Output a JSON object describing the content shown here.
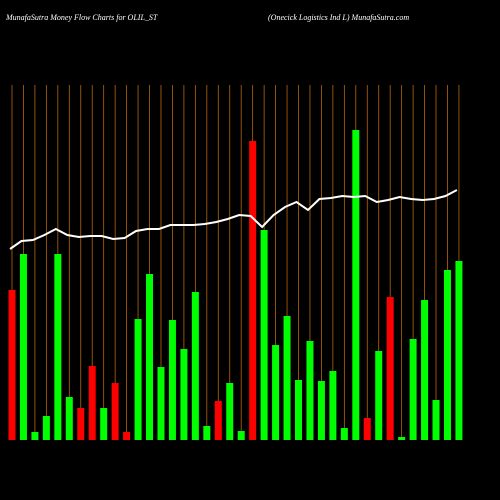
{
  "chart_data": {
    "type": "bar",
    "title": "MunafaSutra  Money Flow  Charts for OLIL_ST",
    "subtitle": "(Onecick Logistics Ind L) MunafaSutra.com",
    "ylim": [
      0,
      355
    ],
    "grid": true,
    "grid_color": "#b8660b",
    "series": [
      {
        "name": "Money Flow",
        "type": "bar",
        "colors": [
          "#ff0000",
          "#00ff00",
          "#00ff00",
          "#00ff00",
          "#00ff00",
          "#00ff00",
          "#ff0000",
          "#ff0000",
          "#00ff00",
          "#ff0000",
          "#ff0000",
          "#00ff00",
          "#00ff00",
          "#00ff00",
          "#00ff00",
          "#00ff00",
          "#00ff00",
          "#00ff00",
          "#ff0000",
          "#00ff00",
          "#00ff00",
          "#ff0000",
          "#00ff00",
          "#00ff00",
          "#00ff00",
          "#00ff00",
          "#00ff00",
          "#00ff00",
          "#00ff00",
          "#00ff00",
          "#00ff00",
          "#ff0000",
          "#00ff00",
          "#ff0000",
          "#00ff00",
          "#00ff00",
          "#00ff00",
          "#00ff00",
          "#00ff00",
          "#00ff00"
        ],
        "values": [
          150,
          186,
          8,
          24,
          186,
          43,
          32,
          74,
          32,
          57,
          8,
          121,
          166,
          73,
          120,
          91,
          148,
          14,
          39,
          57,
          9,
          299,
          210,
          95,
          124,
          60,
          99,
          59,
          69,
          12,
          310,
          22,
          89,
          143,
          3,
          101,
          140,
          40,
          170,
          179
        ]
      },
      {
        "name": "Price",
        "type": "line",
        "color": "#ffffff",
        "values": [
          191,
          199,
          200,
          205,
          211,
          205,
          203,
          204,
          204,
          201,
          202,
          209,
          211,
          211,
          215,
          215,
          215,
          216,
          218,
          221,
          225,
          224,
          213,
          225,
          233,
          238,
          230,
          241,
          242,
          244,
          243,
          244,
          238,
          240,
          243,
          241,
          240,
          241,
          244,
          250
        ]
      }
    ]
  }
}
